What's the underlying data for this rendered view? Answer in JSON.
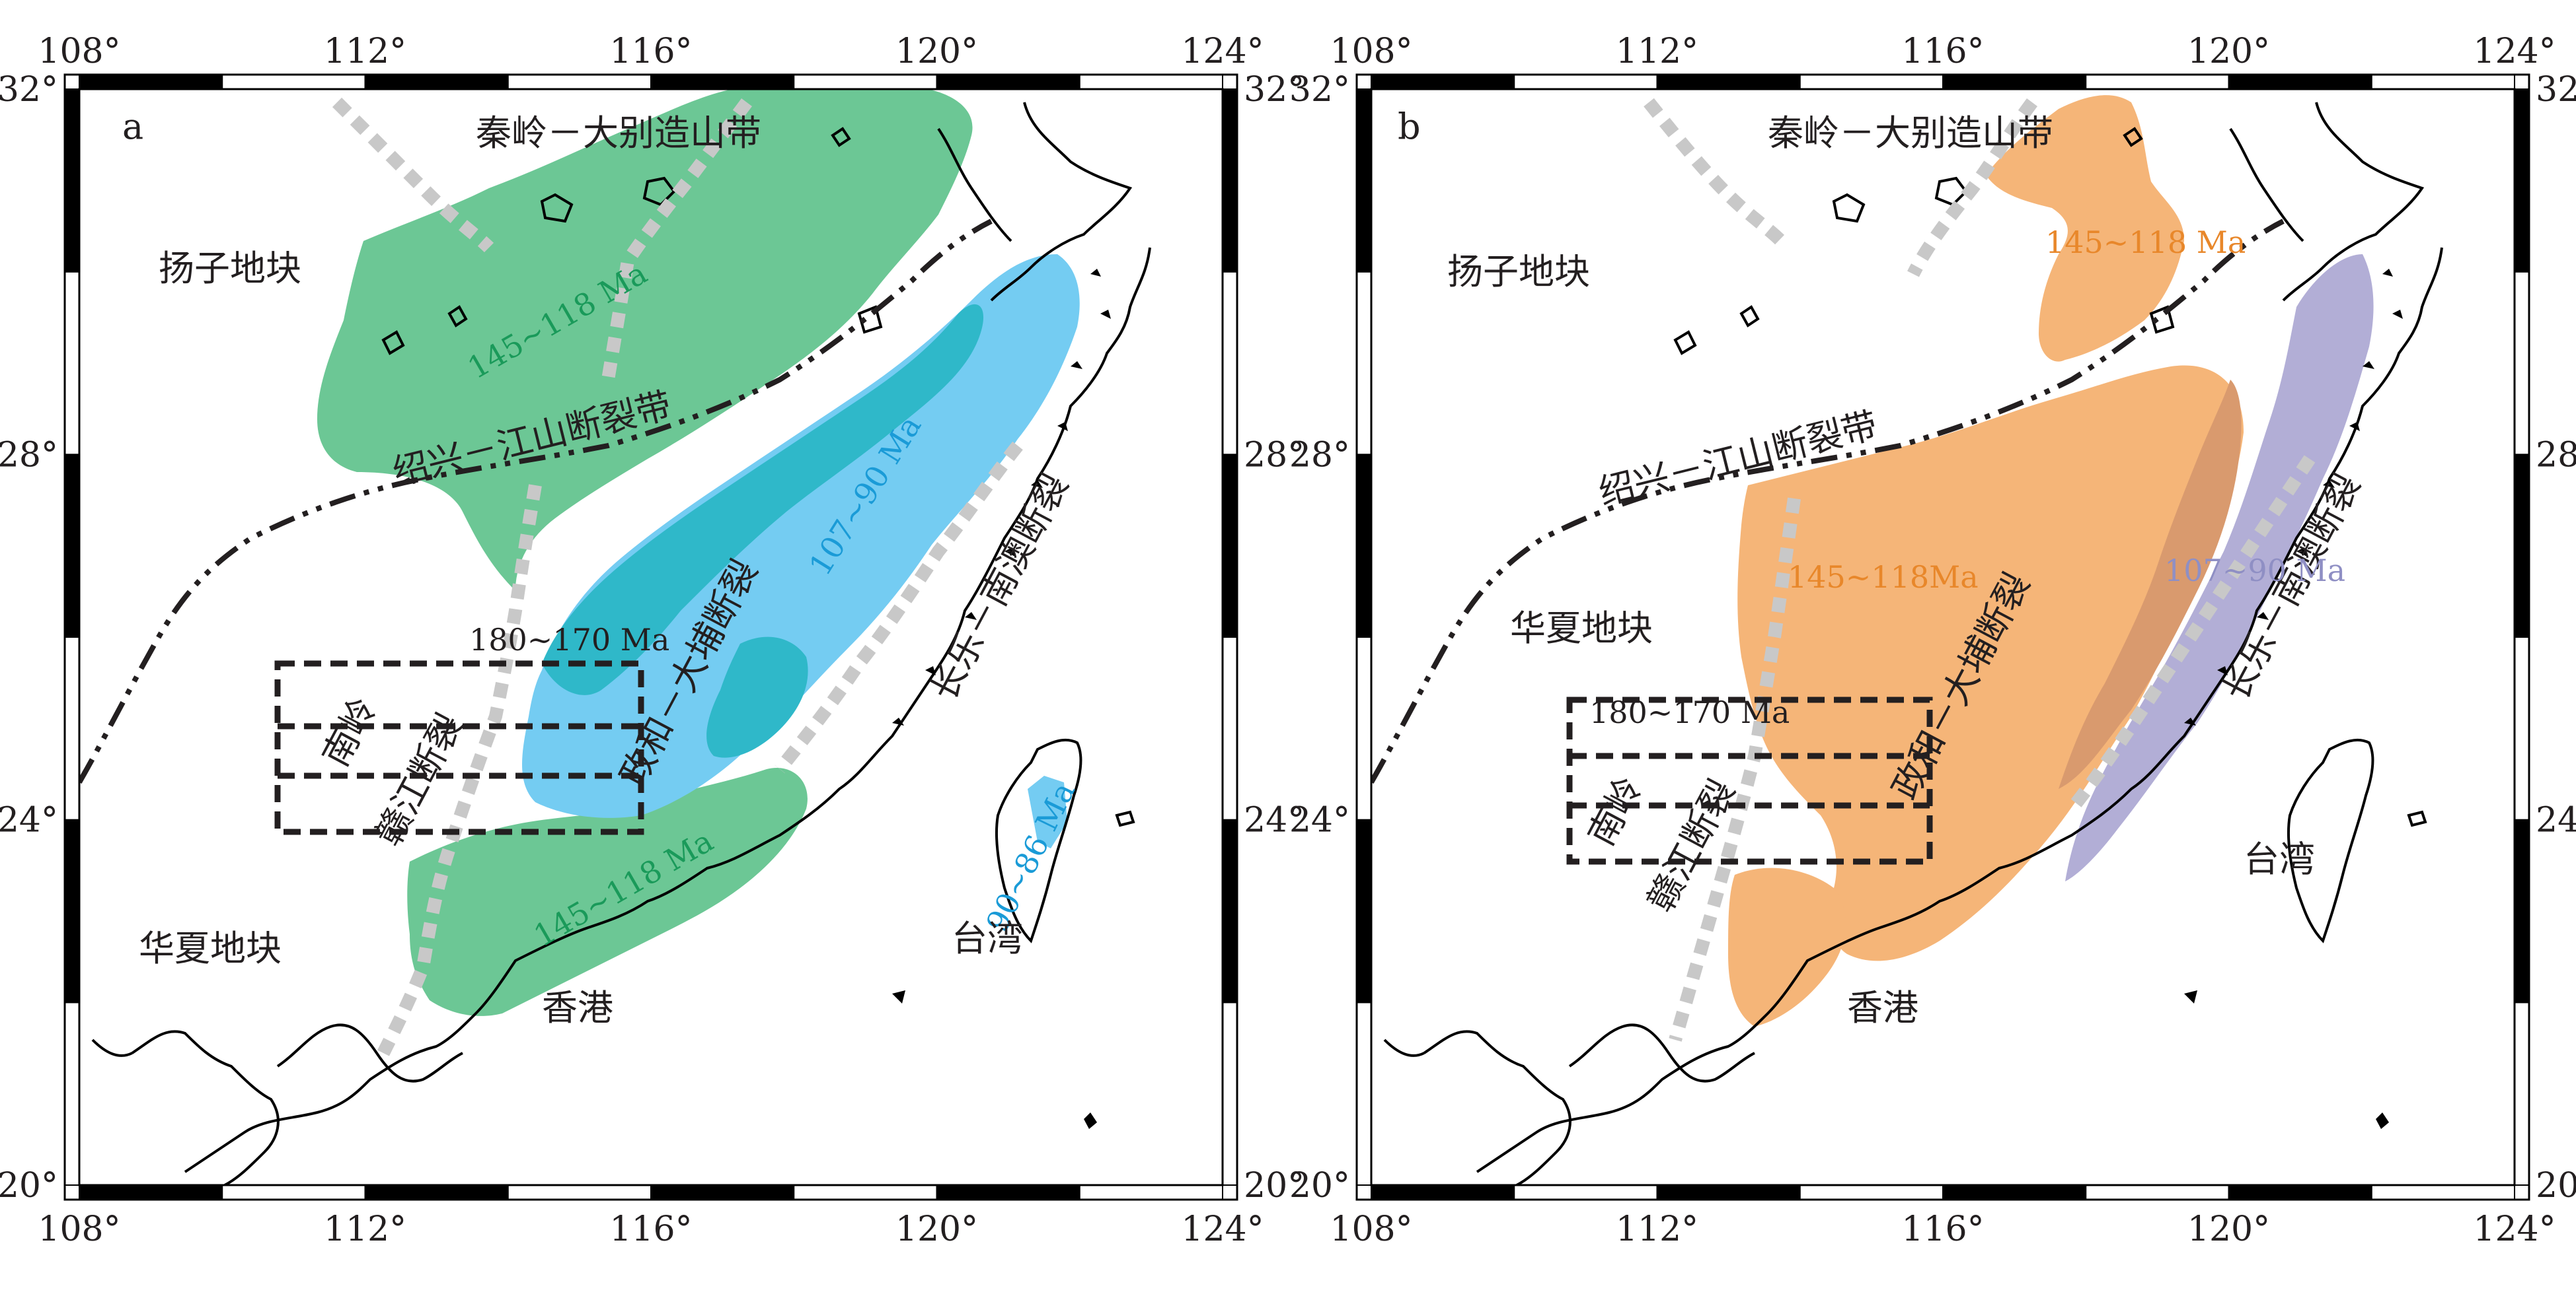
{
  "colors": {
    "green_145_118": "#6cc795",
    "cyan_overlap": "#2fb8c9",
    "blue_107_90": "#74ccf2",
    "orange_145_118": "#f5b578",
    "purple_107_90": "#b2aed6",
    "brown_overlap": "#d99a6e",
    "fault_gray": "#c8c8c8",
    "coast": "#000000",
    "text_dark": "#231f20",
    "text_green": "#1a9a5a",
    "text_blue": "#1a9bd7",
    "text_orange": "#e8872a",
    "text_purple": "#8f8fc4"
  },
  "axis": {
    "lon_ticks": [
      "108°",
      "112°",
      "116°",
      "120°",
      "124°"
    ],
    "lat_ticks": [
      "32°",
      "28°",
      "24°",
      "20°"
    ],
    "lon_values": [
      108,
      112,
      116,
      120,
      124
    ],
    "lat_values": [
      32,
      28,
      24,
      20
    ]
  },
  "panels": [
    {
      "id": "a",
      "letter": "a",
      "labels": {
        "qinling": "秦岭－大别造山带",
        "yangtze": "扬子地块",
        "cathaysia": "华夏地块",
        "shaoxing": "绍兴－江山断裂带",
        "zhenghe": "政和－大埔断裂",
        "changle": "长乐－南澳断裂",
        "nanling": "南岭",
        "ganjiang": "赣江断裂",
        "age_180": "180~170 Ma",
        "age_145_n": "145~118 Ma",
        "age_145_s": "145~118 Ma",
        "age_107": "107~90 Ma",
        "age_90": "90~86 Ma",
        "taiwan": "台湾",
        "hongkong": "香港"
      }
    },
    {
      "id": "b",
      "letter": "b",
      "labels": {
        "qinling": "秦岭－大别造山带",
        "yangtze": "扬子地块",
        "cathaysia": "华夏地块",
        "shaoxing": "绍兴－江山断裂带",
        "zhenghe": "政和－大埔断裂",
        "changle": "长乐－南澳断裂",
        "nanling": "南岭",
        "ganjiang": "赣江断裂",
        "age_180": "180~170 Ma",
        "age_145_n": "145~118 Ma",
        "age_145_c": "145~118Ma",
        "age_107": "107~90 Ma",
        "taiwan": "台湾",
        "hongkong": "香港"
      }
    }
  ]
}
